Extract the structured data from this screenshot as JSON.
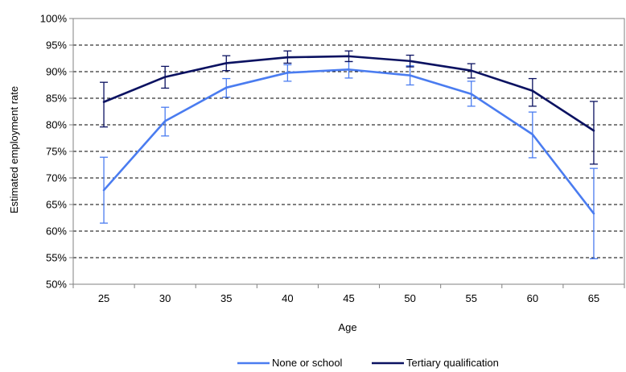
{
  "chart_data": {
    "type": "line",
    "xlabel": "Age",
    "ylabel": "Estimated employment rate",
    "categories": [
      "25",
      "30",
      "35",
      "40",
      "45",
      "50",
      "55",
      "60",
      "65"
    ],
    "y_ticks": [
      "50%",
      "55%",
      "60%",
      "65%",
      "70%",
      "75%",
      "80%",
      "85%",
      "90%",
      "95%",
      "100%"
    ],
    "ylim": [
      50,
      100
    ],
    "grid": true,
    "legend_position": "bottom",
    "series": [
      {
        "name": "None or school",
        "color": "#4a7cf0",
        "values": [
          67.7,
          80.7,
          87.0,
          89.8,
          90.4,
          89.3,
          85.8,
          78.2,
          63.3
        ],
        "error_low": [
          61.5,
          77.9,
          85.2,
          88.2,
          88.8,
          87.5,
          83.5,
          73.8,
          54.8
        ],
        "error_high": [
          73.9,
          83.3,
          88.7,
          91.3,
          91.9,
          91.1,
          88.2,
          82.4,
          71.8
        ]
      },
      {
        "name": "Tertiary qualification",
        "color": "#0b1261",
        "values": [
          84.3,
          89.0,
          91.6,
          92.7,
          92.9,
          92.0,
          90.2,
          86.4,
          78.9
        ],
        "error_low": [
          79.6,
          86.9,
          90.2,
          91.6,
          91.9,
          90.9,
          88.8,
          83.5,
          72.6
        ],
        "error_high": [
          88.0,
          91.0,
          93.0,
          93.9,
          93.9,
          93.1,
          91.5,
          88.7,
          84.4
        ]
      }
    ]
  }
}
